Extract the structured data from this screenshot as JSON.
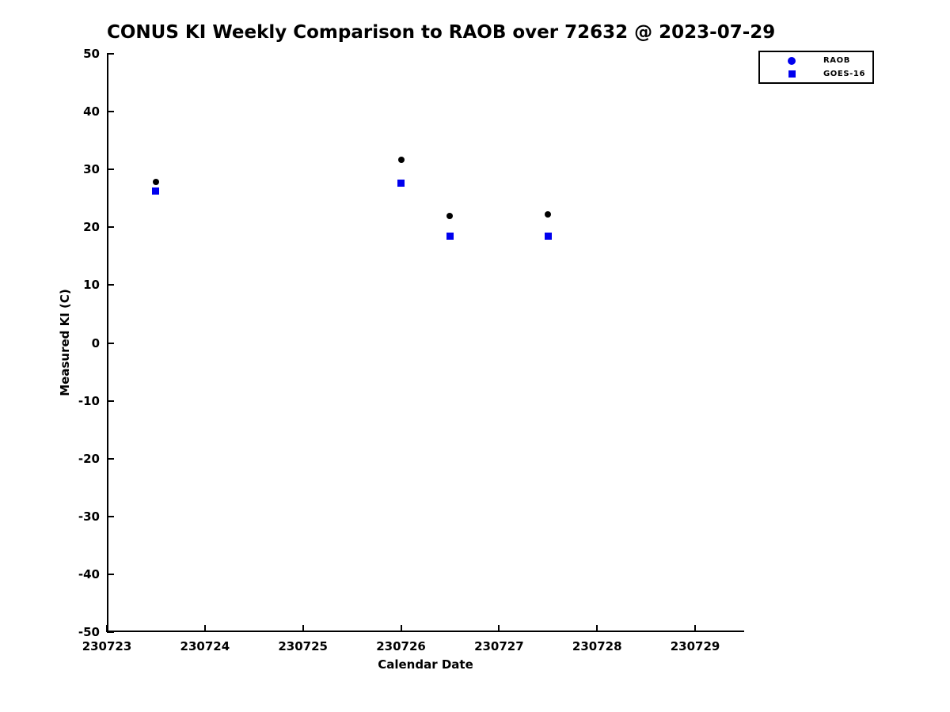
{
  "figure": {
    "background": "#ffffff",
    "axis_color": "#000000"
  },
  "chart_data": {
    "type": "scatter",
    "title": "CONUS KI Weekly Comparison to RAOB over 72632 @ 2023-07-29",
    "xlabel": "Calendar Date",
    "ylabel": "Measured KI (C)",
    "xlim": [
      230723,
      230729.5
    ],
    "ylim": [
      -50,
      50
    ],
    "grid": false,
    "legend_position": "top-right",
    "xticks": {
      "values": [
        230723,
        230724,
        230725,
        230726,
        230727,
        230728,
        230729
      ],
      "labels": [
        "230723",
        "230724",
        "230725",
        "230726",
        "230727",
        "230728",
        "230729"
      ]
    },
    "yticks": {
      "values": [
        50,
        40,
        30,
        20,
        10,
        0,
        -10,
        -20,
        -30,
        -40,
        -50
      ],
      "labels": [
        "50",
        "40",
        "30",
        "20",
        "10",
        "0",
        "-10",
        "-20",
        "-30",
        "-40",
        "-50"
      ]
    },
    "series": [
      {
        "name": "RAOB",
        "marker": "circle",
        "marker_size": 8,
        "marker_color": "#000000",
        "legend_marker_color": "#0000ee",
        "x": [
          230723.5,
          230726.0,
          230726.5,
          230727.5
        ],
        "y": [
          27.8,
          31.7,
          22.0,
          22.2
        ]
      },
      {
        "name": "GOES-16",
        "marker": "square",
        "marker_size": 9,
        "marker_color": "#0000ee",
        "legend_marker_color": "#0000ee",
        "x": [
          230723.5,
          230726.0,
          230726.5,
          230727.5
        ],
        "y": [
          26.3,
          27.6,
          18.4,
          18.4
        ]
      }
    ]
  }
}
